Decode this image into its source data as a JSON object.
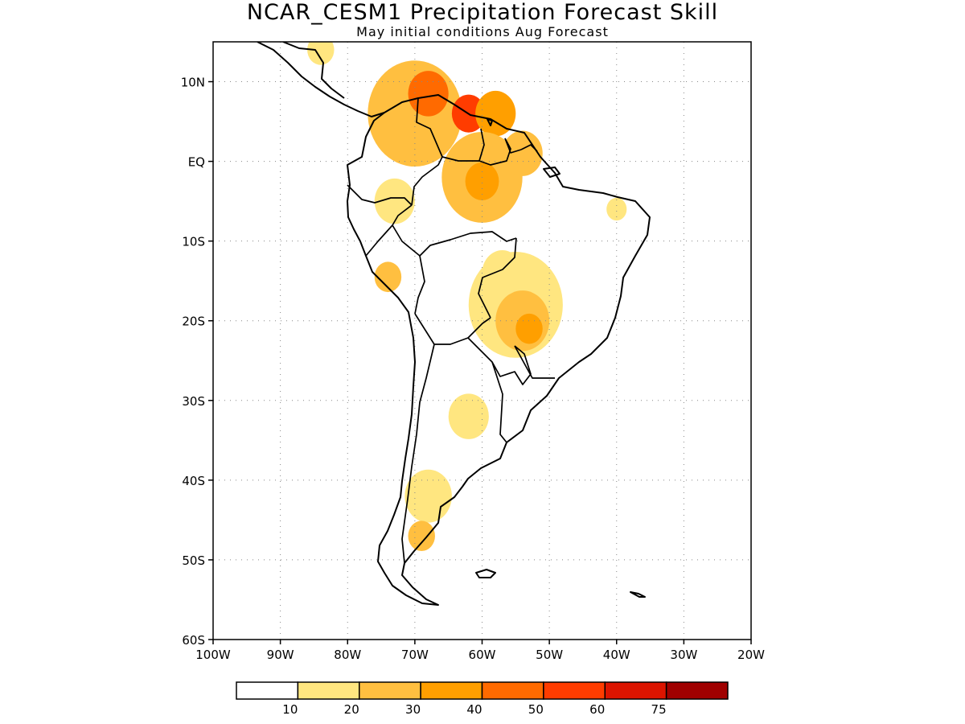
{
  "title": "NCAR_CESM1 Precipitation Forecast Skill",
  "subtitle": "May initial conditions  Aug Forecast",
  "map": {
    "lon_range": [
      -100,
      -20
    ],
    "lat_range": [
      -60,
      15
    ],
    "lat_ticks": [
      {
        "value": 10,
        "label": "10N"
      },
      {
        "value": 0,
        "label": "EQ"
      },
      {
        "value": -10,
        "label": "10S"
      },
      {
        "value": -20,
        "label": "20S"
      },
      {
        "value": -30,
        "label": "30S"
      },
      {
        "value": -40,
        "label": "40S"
      },
      {
        "value": -50,
        "label": "50S"
      },
      {
        "value": -60,
        "label": "60S"
      }
    ],
    "lon_ticks": [
      {
        "value": -100,
        "label": "100W"
      },
      {
        "value": -90,
        "label": "90W"
      },
      {
        "value": -80,
        "label": "80W"
      },
      {
        "value": -70,
        "label": "70W"
      },
      {
        "value": -60,
        "label": "60W"
      },
      {
        "value": -50,
        "label": "50W"
      },
      {
        "value": -40,
        "label": "40W"
      },
      {
        "value": -30,
        "label": "30W"
      },
      {
        "value": -20,
        "label": "20W"
      }
    ],
    "grid": "dotted"
  },
  "colorbar": {
    "labels": [
      "10",
      "20",
      "30",
      "40",
      "50",
      "60",
      "75"
    ],
    "colors": [
      "#ffffff",
      "#ffe680",
      "#ffbf40",
      "#ff9f00",
      "#ff6a00",
      "#ff3c00",
      "#dc1400",
      "#a00000"
    ]
  },
  "skill_regions": [
    {
      "level": 2,
      "lon": -70,
      "lat": 6,
      "r": 7
    },
    {
      "level": 4,
      "lon": -68,
      "lat": 8.5,
      "r": 3
    },
    {
      "level": 5,
      "lon": -62,
      "lat": 6,
      "r": 2.5
    },
    {
      "level": 3,
      "lon": -58,
      "lat": 6,
      "r": 3
    },
    {
      "level": 2,
      "lon": -60,
      "lat": -2,
      "r": 6
    },
    {
      "level": 3,
      "lon": -60,
      "lat": -2.5,
      "r": 2.5
    },
    {
      "level": 2,
      "lon": -54,
      "lat": 1,
      "r": 3
    },
    {
      "level": 1,
      "lon": -55,
      "lat": -18,
      "r": 7
    },
    {
      "level": 2,
      "lon": -54,
      "lat": -20,
      "r": 4
    },
    {
      "level": 3,
      "lon": -53,
      "lat": -21,
      "r": 2
    },
    {
      "level": 1,
      "lon": -57,
      "lat": -14,
      "r": 3
    },
    {
      "level": 1,
      "lon": -73,
      "lat": -5,
      "r": 3
    },
    {
      "level": 2,
      "lon": -74,
      "lat": -14.5,
      "r": 2
    },
    {
      "level": 1,
      "lon": -62,
      "lat": -32,
      "r": 3
    },
    {
      "level": 1,
      "lon": -68,
      "lat": -42,
      "r": 3.5
    },
    {
      "level": 2,
      "lon": -69,
      "lat": -47,
      "r": 2
    },
    {
      "level": 1,
      "lon": -40,
      "lat": -6,
      "r": 1.5
    },
    {
      "level": 1,
      "lon": -84,
      "lat": 14,
      "r": 2
    }
  ]
}
